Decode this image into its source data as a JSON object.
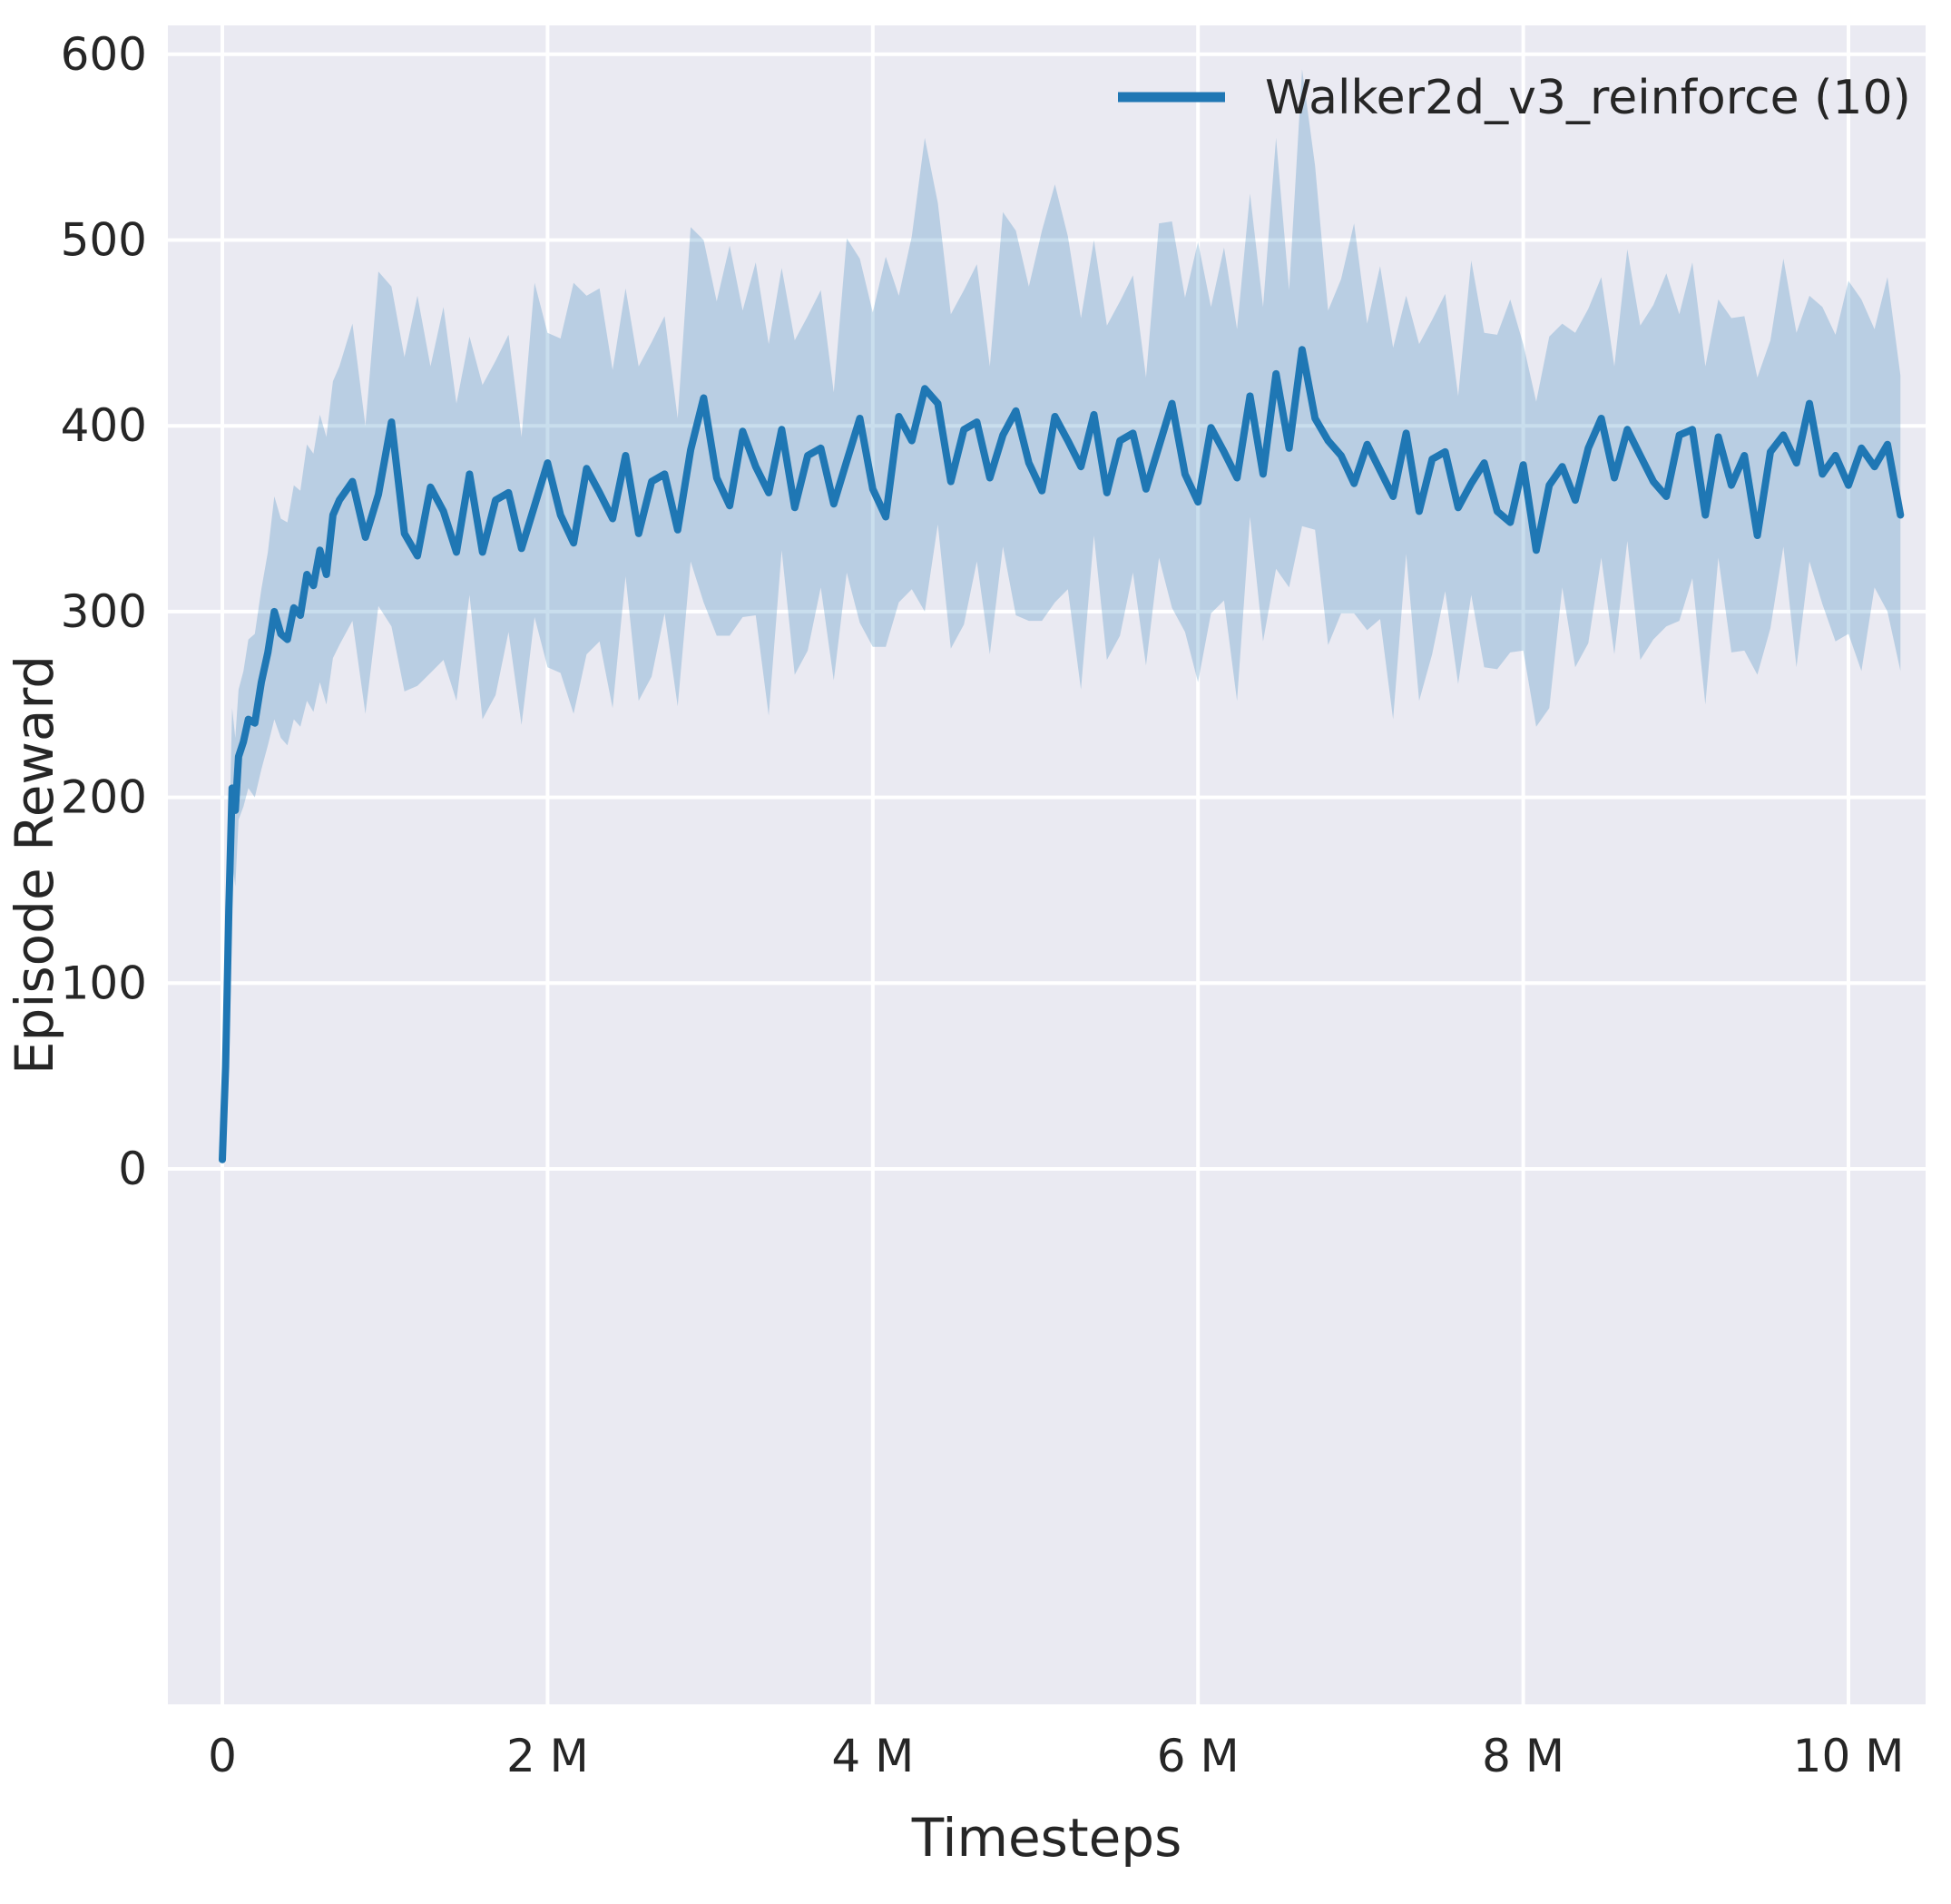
{
  "figure": {
    "background": "#ffffff",
    "axes_background": "#eaeaf2",
    "grid_color": "#ffffff",
    "text_color": "#262626"
  },
  "chart_data": {
    "type": "line",
    "title": "",
    "xlabel": "Timesteps",
    "ylabel": "Episode Reward",
    "x_unit": "millions of timesteps",
    "xlim": [
      -0.34,
      10.47
    ],
    "ylim": [
      -290,
      615
    ],
    "grid": true,
    "x_ticks": [
      {
        "value": 0,
        "label": "0"
      },
      {
        "value": 2,
        "label": "2 M"
      },
      {
        "value": 4,
        "label": "4 M"
      },
      {
        "value": 6,
        "label": "6 M"
      },
      {
        "value": 8,
        "label": "8 M"
      },
      {
        "value": 10,
        "label": "10 M"
      }
    ],
    "y_ticks": [
      {
        "value": 0,
        "label": "0"
      },
      {
        "value": 100,
        "label": "100"
      },
      {
        "value": 200,
        "label": "200"
      },
      {
        "value": 300,
        "label": "300"
      },
      {
        "value": 400,
        "label": "400"
      },
      {
        "value": 500,
        "label": "500"
      },
      {
        "value": 600,
        "label": "600"
      }
    ],
    "legend": {
      "position": "upper right",
      "entries": [
        {
          "label": "Walker2d_v3_reinforce (10)",
          "color": "#1f77b4"
        }
      ]
    },
    "series": [
      {
        "name": "Walker2d_v3_reinforce (10)",
        "color": "#1f77b4",
        "band_fill_opacity": 0.24,
        "x_millions": [
          0,
          0.02,
          0.04,
          0.06,
          0.08,
          0.1,
          0.13,
          0.16,
          0.2,
          0.24,
          0.28,
          0.32,
          0.36,
          0.4,
          0.44,
          0.48,
          0.52,
          0.56,
          0.6,
          0.64,
          0.68,
          0.72,
          0.8,
          0.88,
          0.96,
          1.04,
          1.12,
          1.2,
          1.28,
          1.36,
          1.44,
          1.52,
          1.6,
          1.68,
          1.76,
          1.84,
          1.92,
          2,
          2.08,
          2.16,
          2.24,
          2.32,
          2.4,
          2.48,
          2.56,
          2.64,
          2.72,
          2.8,
          2.88,
          2.96,
          3.04,
          3.12,
          3.2,
          3.28,
          3.36,
          3.44,
          3.52,
          3.6,
          3.68,
          3.76,
          3.84,
          3.92,
          4,
          4.08,
          4.16,
          4.24,
          4.32,
          4.4,
          4.48,
          4.56,
          4.64,
          4.72,
          4.8,
          4.88,
          4.96,
          5.04,
          5.12,
          5.2,
          5.28,
          5.36,
          5.44,
          5.52,
          5.6,
          5.68,
          5.76,
          5.84,
          5.92,
          6,
          6.08,
          6.16,
          6.24,
          6.32,
          6.4,
          6.48,
          6.56,
          6.64,
          6.72,
          6.8,
          6.88,
          6.96,
          7.04,
          7.12,
          7.2,
          7.28,
          7.36,
          7.44,
          7.52,
          7.6,
          7.68,
          7.76,
          7.84,
          7.92,
          8,
          8.08,
          8.16,
          8.24,
          8.32,
          8.4,
          8.48,
          8.56,
          8.64,
          8.72,
          8.8,
          8.88,
          8.96,
          9.04,
          9.12,
          9.2,
          9.28,
          9.36,
          9.44,
          9.52,
          9.6,
          9.68,
          9.76,
          9.84,
          9.92,
          10,
          10.08,
          10.16,
          10.24,
          10.32
        ],
        "mean": [
          5,
          55,
          140,
          205,
          193,
          222,
          230,
          242,
          240,
          262,
          278,
          300,
          288,
          285,
          302,
          298,
          320,
          314,
          333,
          320,
          352,
          360,
          370,
          340,
          363,
          402,
          342,
          330,
          367,
          354,
          332,
          374,
          332,
          360,
          364,
          334,
          357,
          380,
          352,
          337,
          377,
          364,
          350,
          384,
          342,
          370,
          374,
          344,
          387,
          415,
          372,
          357,
          397,
          378,
          364,
          398,
          356,
          384,
          388,
          358,
          381,
          404,
          366,
          351,
          405,
          392,
          420,
          412,
          370,
          398,
          402,
          372,
          395,
          408,
          380,
          365,
          405,
          392,
          378,
          406,
          364,
          392,
          396,
          366,
          389,
          412,
          374,
          359,
          399,
          386,
          372,
          416,
          374,
          428,
          388,
          441,
          404,
          392,
          384,
          369,
          390,
          376,
          362,
          396,
          354,
          382,
          386,
          356,
          369,
          380,
          354,
          348,
          379,
          333,
          368,
          378,
          360,
          388,
          404,
          372,
          398,
          384,
          370,
          362,
          395,
          398,
          352,
          394,
          368,
          384,
          341,
          386,
          395,
          380,
          412,
          374,
          384,
          368,
          388,
          378,
          390,
          352
        ],
        "band_low": [
          3,
          40,
          115,
          165,
          152,
          188,
          195,
          205,
          200,
          215,
          228,
          242,
          232,
          228,
          242,
          238,
          252,
          246,
          262,
          250,
          275,
          282,
          295,
          245,
          303,
          292,
          257,
          260,
          267,
          274,
          252,
          309,
          242,
          255,
          289,
          239,
          297,
          270,
          267,
          245,
          277,
          284,
          248,
          319,
          252,
          265,
          299,
          249,
          327,
          305,
          287,
          287,
          297,
          298,
          244,
          333,
          266,
          279,
          313,
          263,
          321,
          294,
          281,
          281,
          305,
          312,
          300,
          347,
          280,
          293,
          327,
          277,
          335,
          298,
          295,
          295,
          305,
          312,
          258,
          341,
          274,
          287,
          321,
          271,
          329,
          302,
          289,
          262,
          299,
          306,
          252,
          351,
          284,
          323,
          313,
          346,
          344,
          282,
          299,
          299,
          290,
          296,
          242,
          331,
          252,
          277,
          311,
          261,
          309,
          270,
          269,
          278,
          279,
          238,
          248,
          313,
          270,
          283,
          329,
          277,
          338,
          274,
          285,
          292,
          295,
          318,
          250,
          329,
          278,
          279,
          266,
          291,
          335,
          270,
          327,
          304,
          284,
          288,
          268,
          313,
          300,
          268
        ],
        "band_high": [
          8,
          75,
          170,
          248,
          232,
          258,
          268,
          285,
          288,
          312,
          332,
          362,
          350,
          348,
          368,
          365,
          390,
          385,
          406,
          394,
          424,
          432,
          455,
          400,
          483,
          475,
          437,
          470,
          432,
          464,
          412,
          448,
          422,
          435,
          449,
          394,
          477,
          450,
          447,
          477,
          470,
          474,
          430,
          474,
          432,
          445,
          459,
          404,
          507,
          500,
          467,
          497,
          462,
          488,
          444,
          485,
          446,
          459,
          473,
          418,
          501,
          490,
          461,
          491,
          470,
          502,
          555,
          520,
          460,
          473,
          487,
          432,
          515,
          505,
          475,
          505,
          530,
          502,
          458,
          500,
          454,
          467,
          481,
          426,
          509,
          510,
          469,
          499,
          464,
          496,
          452,
          525,
          464,
          555,
          473,
          592,
          540,
          462,
          479,
          509,
          455,
          486,
          442,
          470,
          444,
          457,
          471,
          416,
          489,
          450,
          449,
          468,
          444,
          413,
          448,
          455,
          450,
          463,
          480,
          432,
          495,
          454,
          465,
          482,
          460,
          488,
          432,
          468,
          458,
          459,
          426,
          446,
          490,
          450,
          470,
          464,
          449,
          478,
          468,
          452,
          480,
          427
        ]
      }
    ]
  }
}
